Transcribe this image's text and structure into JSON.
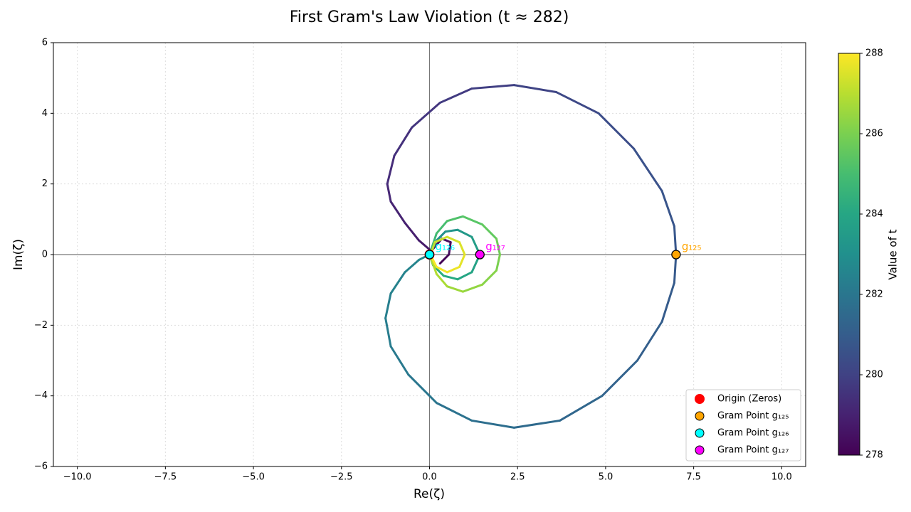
{
  "chart_data": {
    "type": "parametric",
    "title": "First Gram's Law Violation (t ≈ 282)",
    "xlabel": "Re(ζ)",
    "ylabel": "Im(ζ)",
    "xlim": [
      -10.68,
      10.68
    ],
    "ylim": [
      -6,
      6
    ],
    "xticks": [
      {
        "value": -10,
        "label": "−10.0"
      },
      {
        "value": -7.5,
        "label": "−7.5"
      },
      {
        "value": -5,
        "label": "−5.0"
      },
      {
        "value": -2.5,
        "label": "−2.5"
      },
      {
        "value": 0,
        "label": "0.0"
      },
      {
        "value": 2.5,
        "label": "2.5"
      },
      {
        "value": 5,
        "label": "5.0"
      },
      {
        "value": 7.5,
        "label": "7.5"
      },
      {
        "value": 10,
        "label": "10.0"
      }
    ],
    "yticks": [
      {
        "value": -6,
        "label": "−6"
      },
      {
        "value": -4,
        "label": "−4"
      },
      {
        "value": -2,
        "label": "−2"
      },
      0,
      2,
      4,
      6
    ],
    "grid": true,
    "colormap": "viridis",
    "colorbar_label": "Value of t",
    "clim": [
      278,
      288
    ],
    "cticks": [
      278,
      280,
      282,
      284,
      286,
      288
    ],
    "curve": {
      "x": [
        0.3,
        0.55,
        0.6,
        0.35,
        0.05,
        -0.3,
        -0.7,
        -1.1,
        -1.2,
        -1.0,
        -0.5,
        0.3,
        1.2,
        2.4,
        3.6,
        4.8,
        5.8,
        6.6,
        6.95,
        7.0,
        6.95,
        6.6,
        5.9,
        4.9,
        3.7,
        2.4,
        1.2,
        0.2,
        -0.6,
        -1.1,
        -1.25,
        -1.1,
        -0.7,
        -0.3,
        0,
        0.2,
        0.45,
        0.8,
        1.2,
        1.43,
        1.2,
        0.8,
        0.4,
        0.1,
        0.0,
        0.2,
        0.5,
        0.95,
        1.5,
        1.9,
        2.0,
        1.9,
        1.5,
        0.95,
        0.5,
        0.2,
        0.02,
        0.15,
        0.5,
        0.85,
        1.0,
        0.85,
        0.5,
        0.2,
        0.05
      ],
      "y": [
        -0.25,
        0.0,
        0.35,
        0.45,
        0.1,
        0.4,
        0.9,
        1.5,
        2.0,
        2.8,
        3.6,
        4.3,
        4.7,
        4.8,
        4.6,
        4.0,
        3.0,
        1.8,
        0.8,
        0,
        -0.8,
        -1.9,
        -3.0,
        -4.0,
        -4.7,
        -4.9,
        -4.7,
        -4.2,
        -3.4,
        -2.6,
        -1.8,
        -1.1,
        -0.5,
        -0.15,
        0,
        0.4,
        0.65,
        0.7,
        0.5,
        0,
        -0.5,
        -0.7,
        -0.6,
        -0.3,
        0,
        0.6,
        0.95,
        1.08,
        0.85,
        0.45,
        0,
        -0.45,
        -0.85,
        -1.05,
        -0.9,
        -0.55,
        -0.05,
        0.35,
        0.5,
        0.35,
        0,
        -0.35,
        -0.5,
        -0.35,
        -0.05
      ],
      "t": [
        278.0,
        278.2,
        278.35,
        278.5,
        278.65,
        278.8,
        278.95,
        279.1,
        279.25,
        279.4,
        279.55,
        279.7,
        279.85,
        280.0,
        280.15,
        280.3,
        280.45,
        280.6,
        280.7,
        280.8,
        280.9,
        281.0,
        281.15,
        281.3,
        281.45,
        281.6,
        281.75,
        281.9,
        282.05,
        282.2,
        282.3,
        282.4,
        282.5,
        282.6,
        282.7,
        282.9,
        283.1,
        283.3,
        283.5,
        283.7,
        283.9,
        284.1,
        284.3,
        284.5,
        284.7,
        284.9,
        285.1,
        285.3,
        285.5,
        285.7,
        285.9,
        286.1,
        286.3,
        286.5,
        286.7,
        286.9,
        287.0,
        287.15,
        287.3,
        287.45,
        287.6,
        287.7,
        287.8,
        287.9,
        288.0
      ]
    },
    "points": [
      {
        "name": "Origin (Zeros)",
        "color": "#ff0000",
        "x": 0,
        "y": 0
      },
      {
        "name": "Gram Point g₁₂₅",
        "color": "#ffa500",
        "x": 7.0,
        "y": 0,
        "label": "g₁₂₅"
      },
      {
        "name": "Gram Point g₁₂₆",
        "color": "#00ffff",
        "x": 0,
        "y": 0,
        "label": "g₁₂₆"
      },
      {
        "name": "Gram Point g₁₂₇",
        "color": "#ff00ff",
        "x": 1.43,
        "y": 0,
        "label": "g₁₂₇"
      }
    ]
  }
}
